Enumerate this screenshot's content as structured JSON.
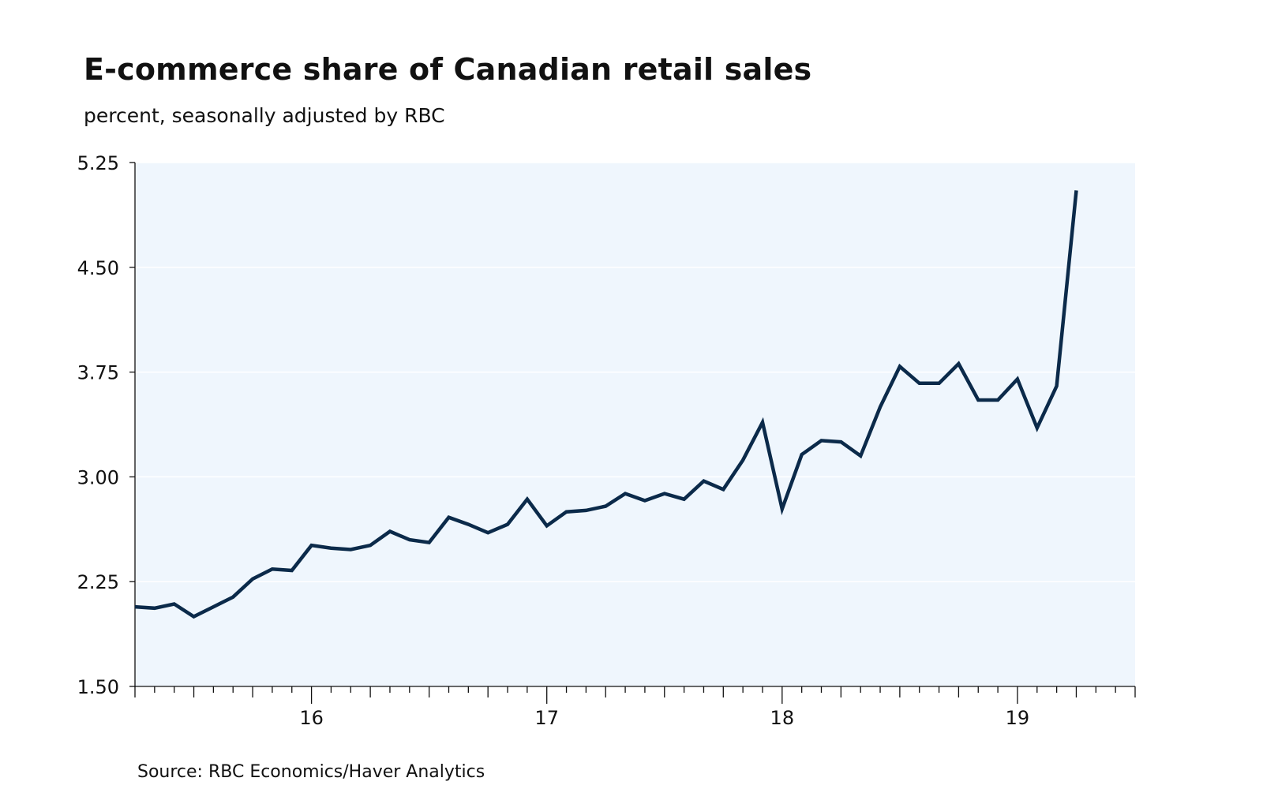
{
  "chart_data": {
    "type": "line",
    "title": "E-commerce share of Canadian retail sales",
    "subtitle": "percent, seasonally adjusted by RBC",
    "source": "Source:  RBC Economics/Haver Analytics",
    "xlabel": "",
    "ylabel": "",
    "ylim": [
      1.5,
      5.25
    ],
    "yticks": [
      1.5,
      2.25,
      3.0,
      3.75,
      4.5,
      5.25
    ],
    "ytick_labels": [
      "1.50",
      "2.25",
      "3.00",
      "3.75",
      "4.50",
      "5.25"
    ],
    "x_start": "2015-10",
    "x_end": "2019-12",
    "xtick_labels": [
      "16",
      "17",
      "18",
      "19"
    ],
    "grid": true,
    "colors": {
      "line": "#0b2a4a",
      "plot_background": "#eff6fd",
      "grid": "#ffffff",
      "axis": "#111111"
    },
    "series": [
      {
        "name": "E-commerce share",
        "x": [
          "2015-10",
          "2015-11",
          "2015-12",
          "2016-01",
          "2016-02",
          "2016-03",
          "2016-04",
          "2016-05",
          "2016-06",
          "2016-07",
          "2016-08",
          "2016-09",
          "2016-10",
          "2016-11",
          "2016-12",
          "2017-01",
          "2017-02",
          "2017-03",
          "2017-04",
          "2017-05",
          "2017-06",
          "2017-07",
          "2017-08",
          "2017-09",
          "2017-10",
          "2017-11",
          "2017-12",
          "2018-01",
          "2018-02",
          "2018-03",
          "2018-04",
          "2018-05",
          "2018-06",
          "2018-07",
          "2018-08",
          "2018-09",
          "2018-10",
          "2018-11",
          "2018-12",
          "2019-01",
          "2019-02",
          "2019-03",
          "2019-04",
          "2019-05",
          "2019-06",
          "2019-07",
          "2019-08",
          "2019-09",
          "2019-10"
        ],
        "values": [
          2.07,
          2.06,
          2.09,
          2.0,
          2.07,
          2.14,
          2.27,
          2.34,
          2.33,
          2.51,
          2.49,
          2.48,
          2.51,
          2.61,
          2.55,
          2.53,
          2.71,
          2.66,
          2.6,
          2.66,
          2.84,
          2.65,
          2.75,
          2.76,
          2.79,
          2.88,
          2.83,
          2.88,
          2.84,
          2.97,
          2.91,
          3.12,
          3.39,
          2.77,
          3.16,
          3.26,
          3.25,
          3.15,
          3.5,
          3.79,
          3.67,
          3.67,
          3.81,
          3.55,
          3.55,
          3.7,
          3.35,
          3.65,
          5.05
        ]
      }
    ]
  }
}
